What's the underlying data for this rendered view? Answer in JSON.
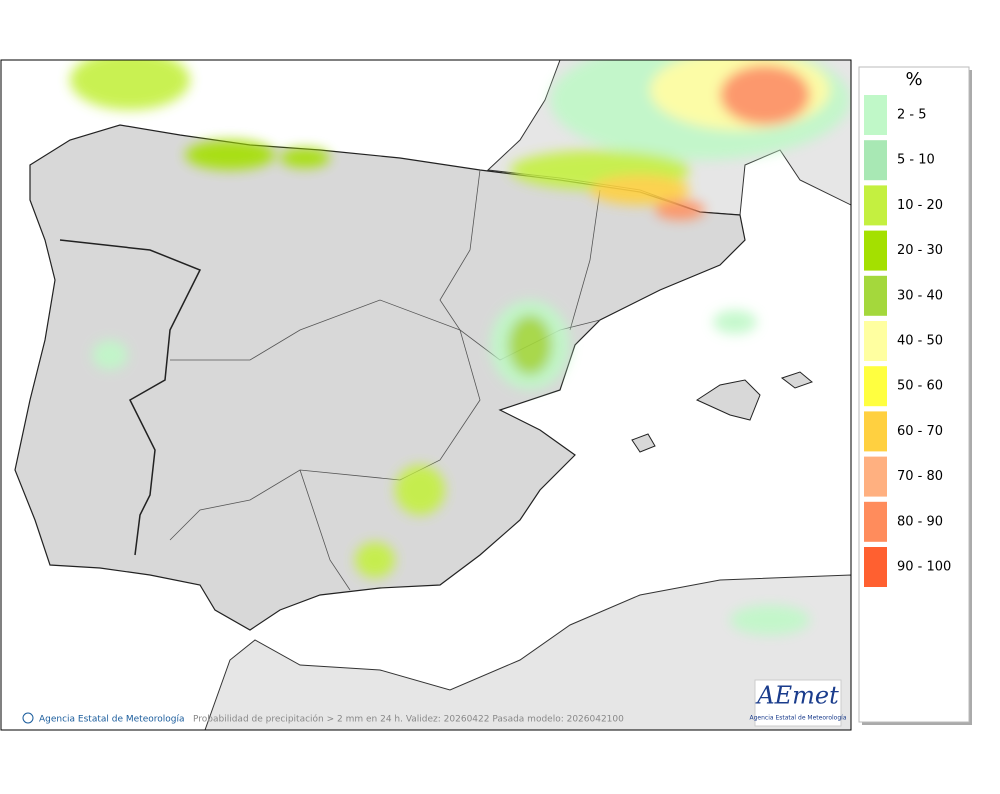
{
  "map": {
    "caption": "Probabilidad de precipitación > 2 mm en 24 h. Validez: 20260422 Pasada modelo: 2026042100",
    "copyright": "Agencia Estatal de Meteorología",
    "logo": {
      "name": "AEmet",
      "subtitle": "Agencia Estatal de Meteorología"
    }
  },
  "legend": {
    "title": "%",
    "items": [
      {
        "label": "2 - 5",
        "color": "#c0f8c8"
      },
      {
        "label": "5 - 10",
        "color": "#a8e8b4"
      },
      {
        "label": "10 - 20",
        "color": "#c4f040"
      },
      {
        "label": "20 - 30",
        "color": "#a4e000"
      },
      {
        "label": "30 - 40",
        "color": "#a4d83c"
      },
      {
        "label": "40 - 50",
        "color": "#ffffa0"
      },
      {
        "label": "50 - 60",
        "color": "#ffff40"
      },
      {
        "label": "60 - 70",
        "color": "#ffd040"
      },
      {
        "label": "70 - 80",
        "color": "#ffb080"
      },
      {
        "label": "80 - 90",
        "color": "#ff8c5c"
      },
      {
        "label": "90 - 100",
        "color": "#ff6030"
      }
    ]
  }
}
